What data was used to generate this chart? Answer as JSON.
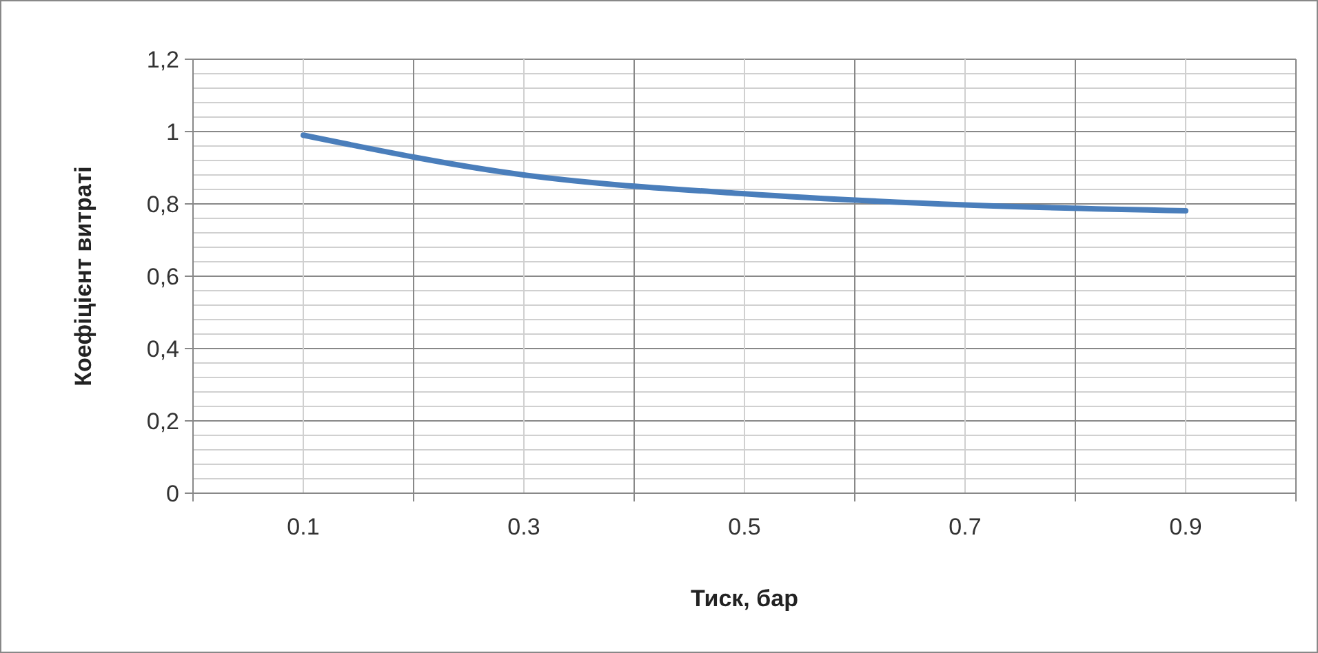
{
  "chart_data": {
    "type": "line",
    "xlabel": "Тиск, бар",
    "ylabel": "Коефіцієнт витраті",
    "categories": [
      "0.1",
      "0.3",
      "0.5",
      "0.7",
      "0.9"
    ],
    "series": [
      {
        "color": "#4a7ebb",
        "values": [
          0.99,
          0.88,
          0.828,
          0.797,
          0.781
        ]
      }
    ],
    "ylim": [
      0,
      1.2
    ],
    "yticks": [
      {
        "value": 0,
        "label": "0"
      },
      {
        "value": 0.04,
        "label": null
      },
      {
        "value": 0.08,
        "label": null
      },
      {
        "value": 0.12,
        "label": null
      },
      {
        "value": 0.16,
        "label": null
      },
      {
        "value": 0.2,
        "label": "0,2"
      },
      {
        "value": 0.24,
        "label": null
      },
      {
        "value": 0.28,
        "label": null
      },
      {
        "value": 0.32,
        "label": null
      },
      {
        "value": 0.36,
        "label": null
      },
      {
        "value": 0.4,
        "label": "0,4"
      },
      {
        "value": 0.44,
        "label": null
      },
      {
        "value": 0.48,
        "label": null
      },
      {
        "value": 0.52,
        "label": null
      },
      {
        "value": 0.56,
        "label": null
      },
      {
        "value": 0.6,
        "label": "0,6"
      },
      {
        "value": 0.64,
        "label": null
      },
      {
        "value": 0.68,
        "label": null
      },
      {
        "value": 0.72,
        "label": null
      },
      {
        "value": 0.76,
        "label": null
      },
      {
        "value": 0.8,
        "label": "0,8"
      },
      {
        "value": 0.84,
        "label": null
      },
      {
        "value": 0.88,
        "label": null
      },
      {
        "value": 0.92,
        "label": null
      },
      {
        "value": 0.96,
        "label": null
      },
      {
        "value": 1,
        "label": "1"
      },
      {
        "value": 1.04,
        "label": null
      },
      {
        "value": 1.08,
        "label": null
      },
      {
        "value": 1.12,
        "label": null
      },
      {
        "value": 1.16,
        "label": null
      },
      {
        "value": 1.2,
        "label": "1,2"
      }
    ],
    "grid": true,
    "marker": "none",
    "line_style": "solid"
  }
}
